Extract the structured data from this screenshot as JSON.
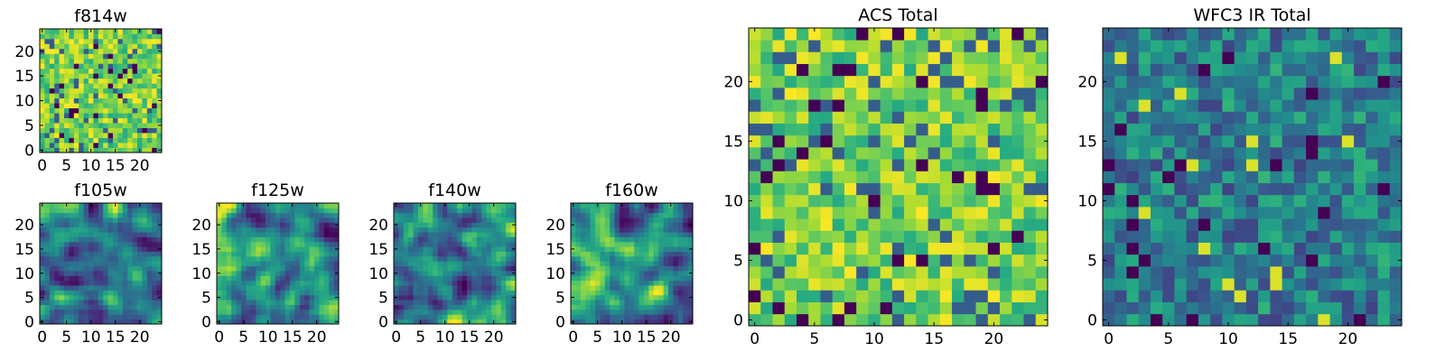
{
  "chart_data": [
    {
      "type": "heatmap",
      "title": "f814w",
      "x_ticks": [
        0,
        5,
        10,
        15,
        20
      ],
      "y_ticks": [
        0,
        5,
        10,
        15,
        20
      ],
      "xlim": [
        -0.5,
        24.5
      ],
      "ylim": [
        -0.5,
        24.5
      ],
      "grid": "off",
      "colormap": "viridis",
      "shape": [
        25,
        25
      ],
      "seed": 11,
      "blob_scale": 0.3,
      "sparse": true
    },
    {
      "type": "heatmap",
      "title": "f105w",
      "x_ticks": [
        0,
        5,
        10,
        15,
        20
      ],
      "y_ticks": [
        0,
        5,
        10,
        15,
        20
      ],
      "xlim": [
        -0.5,
        24.5
      ],
      "ylim": [
        -0.5,
        24.5
      ],
      "grid": "off",
      "colormap": "viridis",
      "shape": [
        25,
        25
      ],
      "seed": 23,
      "blob_scale": 0.9,
      "sparse": false
    },
    {
      "type": "heatmap",
      "title": "f125w",
      "x_ticks": [
        0,
        5,
        10,
        15,
        20
      ],
      "y_ticks": [
        0,
        5,
        10,
        15,
        20
      ],
      "xlim": [
        -0.5,
        24.5
      ],
      "ylim": [
        -0.5,
        24.5
      ],
      "grid": "off",
      "colormap": "viridis",
      "shape": [
        25,
        25
      ],
      "seed": 37,
      "blob_scale": 0.9,
      "sparse": false
    },
    {
      "type": "heatmap",
      "title": "f140w",
      "x_ticks": [
        0,
        5,
        10,
        15,
        20
      ],
      "y_ticks": [
        0,
        5,
        10,
        15,
        20
      ],
      "xlim": [
        -0.5,
        24.5
      ],
      "ylim": [
        -0.5,
        24.5
      ],
      "grid": "off",
      "colormap": "viridis",
      "shape": [
        25,
        25
      ],
      "seed": 41,
      "blob_scale": 0.9,
      "sparse": false
    },
    {
      "type": "heatmap",
      "title": "f160w",
      "x_ticks": [
        0,
        5,
        10,
        15,
        20
      ],
      "y_ticks": [
        0,
        5,
        10,
        15,
        20
      ],
      "xlim": [
        -0.5,
        24.5
      ],
      "ylim": [
        -0.5,
        24.5
      ],
      "grid": "off",
      "colormap": "viridis",
      "shape": [
        25,
        25
      ],
      "seed": 53,
      "blob_scale": 0.9,
      "sparse": false
    },
    {
      "type": "heatmap",
      "title": "ACS Total",
      "x_ticks": [
        0,
        5,
        10,
        15,
        20
      ],
      "y_ticks": [
        0,
        5,
        10,
        15,
        20
      ],
      "xlim": [
        -0.5,
        24.5
      ],
      "ylim": [
        -0.5,
        24.5
      ],
      "grid": "off",
      "colormap": "viridis",
      "shape": [
        25,
        25
      ],
      "seed": 67,
      "blob_scale": 0.3,
      "sparse": true
    },
    {
      "type": "heatmap",
      "title": "WFC3 IR Total",
      "x_ticks": [
        0,
        5,
        10,
        15,
        20
      ],
      "y_ticks": [
        0,
        5,
        10,
        15,
        20
      ],
      "xlim": [
        -0.5,
        24.5
      ],
      "ylim": [
        -0.5,
        24.5
      ],
      "grid": "off",
      "colormap": "viridis",
      "shape": [
        25,
        25
      ],
      "seed": 79,
      "blob_scale": 0.3,
      "sparse": false,
      "dark": true
    }
  ]
}
